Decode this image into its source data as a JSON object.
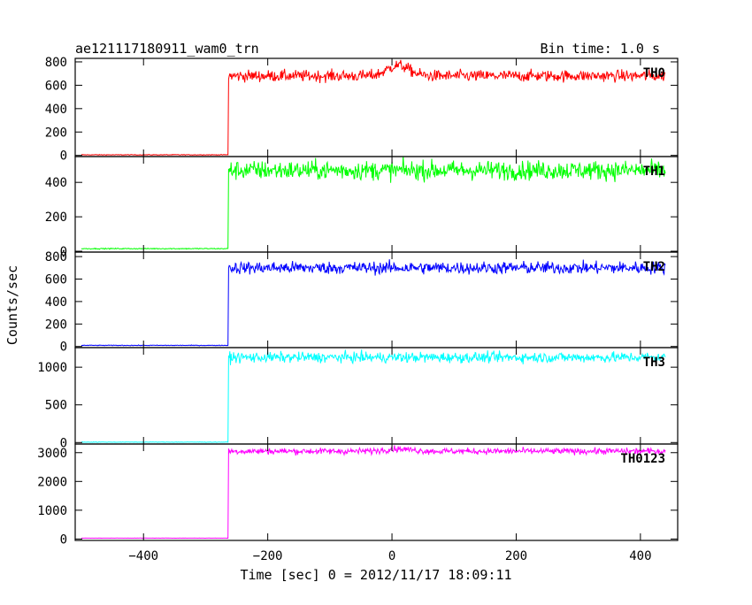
{
  "header": {
    "title": "ae121117180911_wam0_trn",
    "bin_time": "Bin time: 1.0 s"
  },
  "axes": {
    "ylabel": "Counts/sec",
    "xlabel": "Time [sec] 0 = 2012/11/17 18:09:11",
    "x_ticks": [
      "−400",
      "−200",
      "0",
      "200",
      "400"
    ]
  },
  "chart_data": {
    "type": "line",
    "title": "ae121117180911_wam0_trn",
    "xlabel": "Time [sec] 0 = 2012/11/17 18:09:11",
    "ylabel": "Counts/sec",
    "xlim": [
      -510,
      460
    ],
    "x_ticks": [
      -400,
      -200,
      0,
      200,
      400
    ],
    "x_tick_labels": [
      "−400",
      "−200",
      "0",
      "200",
      "400"
    ],
    "bin_time_s": 1.0,
    "trigger_time_s": -263,
    "grid": false,
    "panels": [
      {
        "name": "TH0",
        "color": "#ff0000",
        "ylim": [
          -10,
          830
        ],
        "y_ticks": [
          0,
          200,
          400,
          600,
          800
        ],
        "y_tick_labels": [
          "0",
          "200",
          "400",
          "600",
          "800"
        ],
        "pre_level": 5,
        "post_level": 680,
        "noise": 25,
        "bump": {
          "center": 10,
          "width": 25,
          "height": 90
        },
        "series": [
          {
            "x": -510,
            "y": 5
          },
          {
            "x": -264,
            "y": 5
          },
          {
            "x": -263,
            "y": 680
          },
          {
            "x": -100,
            "y": 680
          },
          {
            "x": 10,
            "y": 770
          },
          {
            "x": 100,
            "y": 680
          },
          {
            "x": 440,
            "y": 670
          }
        ]
      },
      {
        "name": "TH1",
        "color": "#00ff00",
        "ylim": [
          -5,
          550
        ],
        "y_ticks": [
          0,
          200,
          400
        ],
        "y_tick_labels": [
          "0",
          "200",
          "400"
        ],
        "pre_level": 15,
        "post_level": 470,
        "noise": 28,
        "series": [
          {
            "x": -510,
            "y": 15
          },
          {
            "x": -264,
            "y": 15
          },
          {
            "x": -263,
            "y": 470
          },
          {
            "x": 440,
            "y": 470
          }
        ]
      },
      {
        "name": "TH2",
        "color": "#0000ff",
        "ylim": [
          -10,
          840
        ],
        "y_ticks": [
          0,
          200,
          400,
          600,
          800
        ],
        "y_tick_labels": [
          "0",
          "200",
          "400",
          "600",
          "800"
        ],
        "pre_level": 10,
        "post_level": 700,
        "noise": 28,
        "series": [
          {
            "x": -510,
            "y": 10
          },
          {
            "x": -264,
            "y": 10
          },
          {
            "x": -263,
            "y": 700
          },
          {
            "x": 440,
            "y": 700
          }
        ]
      },
      {
        "name": "TH3",
        "color": "#00ffff",
        "ylim": [
          -20,
          1260
        ],
        "y_ticks": [
          0,
          500,
          1000
        ],
        "y_tick_labels": [
          "0",
          "500",
          "1000"
        ],
        "pre_level": 5,
        "post_level": 1130,
        "noise": 35,
        "series": [
          {
            "x": -510,
            "y": 5
          },
          {
            "x": -264,
            "y": 5
          },
          {
            "x": -263,
            "y": 1130
          },
          {
            "x": 440,
            "y": 1130
          }
        ]
      },
      {
        "name": "TH0123",
        "color": "#ff00ff",
        "ylim": [
          -50,
          3300
        ],
        "y_ticks": [
          0,
          1000,
          2000,
          3000
        ],
        "y_tick_labels": [
          "0",
          "1000",
          "2000",
          "3000"
        ],
        "pre_level": 30,
        "post_level": 3050,
        "noise": 55,
        "bump": {
          "center": 10,
          "width": 30,
          "height": 80
        },
        "series": [
          {
            "x": -510,
            "y": 30
          },
          {
            "x": -264,
            "y": 30
          },
          {
            "x": -263,
            "y": 3050
          },
          {
            "x": 440,
            "y": 3050
          }
        ]
      }
    ]
  }
}
